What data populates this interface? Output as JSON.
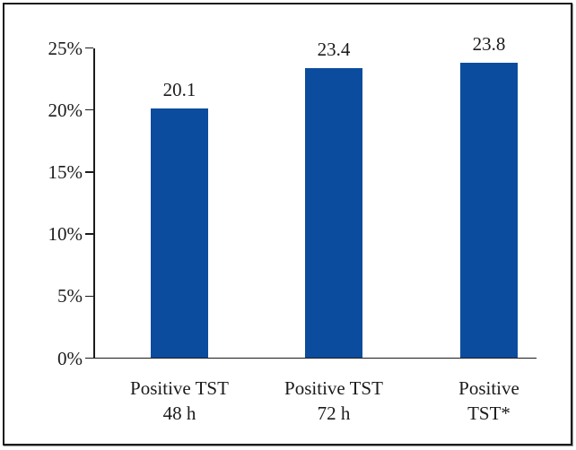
{
  "chart_data": {
    "type": "bar",
    "title": "",
    "xlabel": "",
    "ylabel": "",
    "ylim": [
      0,
      25
    ],
    "y_unit": "%",
    "grid": false,
    "legend": false,
    "bar_color": "#0c4c9e",
    "axis_color": "#1b1b1b",
    "y_ticks": [
      {
        "label": "0%",
        "value": 0
      },
      {
        "label": "5%",
        "value": 5
      },
      {
        "label": "10%",
        "value": 10
      },
      {
        "label": "15%",
        "value": 15
      },
      {
        "label": "20%",
        "value": 20
      },
      {
        "label": "25%",
        "value": 25
      }
    ],
    "bars": [
      {
        "category": "Positive TST 48 h",
        "label_lines": [
          "Positive TST",
          "48 h"
        ],
        "value": 20.1,
        "value_label": "20.1"
      },
      {
        "category": "Positive TST 72 h",
        "label_lines": [
          "Positive TST",
          "72 h"
        ],
        "value": 23.4,
        "value_label": "23.4"
      },
      {
        "category": "Positive TST*",
        "label_lines": [
          "Positive",
          "TST*"
        ],
        "value": 23.8,
        "value_label": "23.8"
      }
    ]
  }
}
